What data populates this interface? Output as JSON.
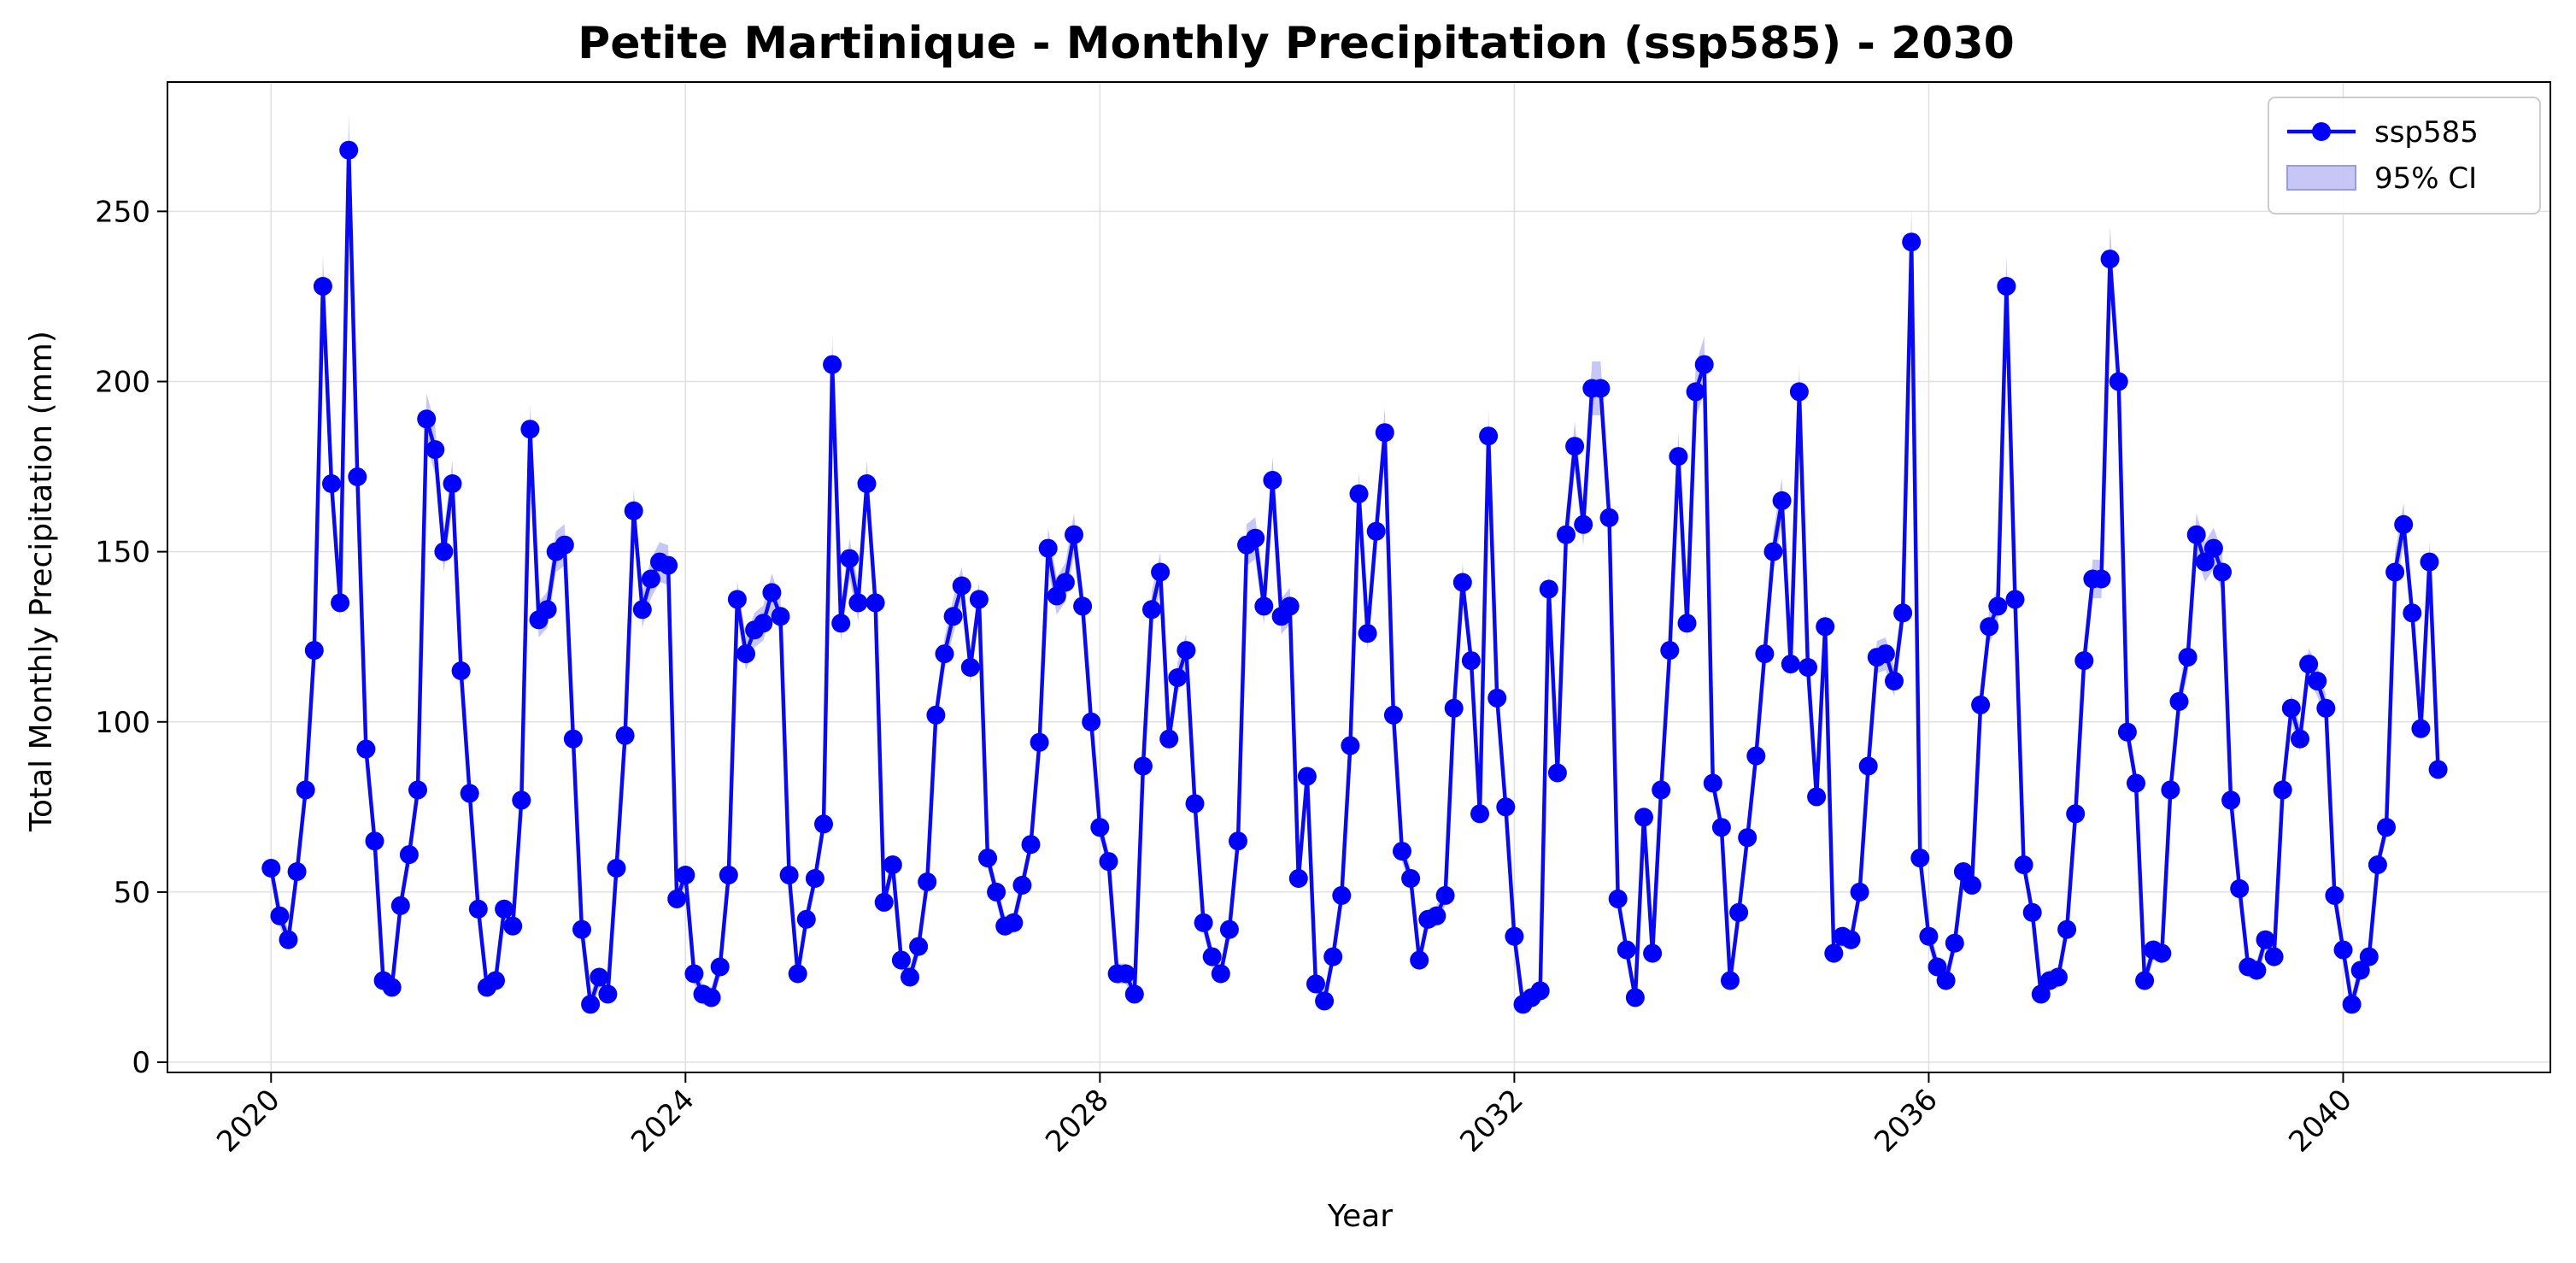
{
  "chart_data": {
    "type": "line",
    "title": "Petite Martinique - Monthly Precipitation (ssp585) - 2030",
    "xlabel": "Year",
    "ylabel": "Total Monthly Precipitation (mm)",
    "x_ticks": [
      2020,
      2024,
      2028,
      2032,
      2036,
      2040
    ],
    "y_ticks": [
      0,
      50,
      100,
      150,
      200,
      250
    ],
    "xlim": [
      2019.0,
      2042.0
    ],
    "ylim": [
      -3,
      288
    ],
    "grid": true,
    "legend_position": "top-right",
    "legend": [
      {
        "label": "ssp585",
        "kind": "line-marker"
      },
      {
        "label": "95% CI",
        "kind": "band"
      }
    ],
    "colors": {
      "line": "#0a0af0",
      "marker": "#0000ff",
      "band": "#9999ee",
      "grid": "#e0e0e0"
    },
    "series": [
      {
        "name": "ssp585",
        "start_year": 2020,
        "step_months": 1,
        "values": [
          57,
          43,
          36,
          56,
          80,
          121,
          228,
          170,
          135,
          268,
          172,
          92,
          65,
          24,
          22,
          46,
          61,
          80,
          189,
          180,
          150,
          170,
          115,
          79,
          45,
          22,
          24,
          45,
          40,
          77,
          186,
          130,
          133,
          150,
          152,
          95,
          39,
          17,
          25,
          20,
          57,
          96,
          162,
          133,
          142,
          147,
          146,
          48,
          55,
          26,
          20,
          19,
          28,
          55,
          136,
          120,
          127,
          129,
          138,
          131,
          55,
          26,
          42,
          54,
          70,
          205,
          129,
          148,
          135,
          170,
          135,
          47,
          58,
          30,
          25,
          34,
          53,
          102,
          120,
          131,
          140,
          116,
          136,
          60,
          50,
          40,
          41,
          52,
          64,
          94,
          151,
          137,
          141,
          155,
          134,
          100,
          69,
          59,
          26,
          26,
          20,
          87,
          133,
          144,
          95,
          113,
          121,
          76,
          41,
          31,
          26,
          39,
          65,
          152,
          154,
          134,
          171,
          131,
          134,
          54,
          84,
          23,
          18,
          31,
          49,
          93,
          167,
          126,
          156,
          185,
          102,
          62,
          54,
          30,
          42,
          43,
          49,
          104,
          141,
          118,
          73,
          184,
          107,
          75,
          37,
          17,
          19,
          21,
          139,
          85,
          155,
          181,
          158,
          198,
          198,
          160,
          48,
          33,
          19,
          72,
          32,
          80,
          121,
          178,
          129,
          197,
          205,
          82,
          69,
          24,
          44,
          66,
          90,
          120,
          150,
          165,
          117,
          197,
          116,
          78,
          128,
          32,
          37,
          36,
          50,
          87,
          119,
          120,
          112,
          132,
          241,
          60,
          37,
          28,
          24,
          35,
          56,
          52,
          105,
          128,
          134,
          228,
          136,
          58,
          44,
          20,
          24,
          25,
          39,
          73,
          118,
          142,
          142,
          236,
          200,
          97,
          82,
          24,
          33,
          32,
          80,
          106,
          119,
          155,
          147,
          151,
          144,
          77,
          51,
          28,
          27,
          36,
          31,
          80,
          104,
          95,
          117,
          112,
          104,
          49,
          33,
          17,
          27,
          31,
          58,
          69,
          144,
          158,
          132,
          98,
          147,
          86
        ]
      }
    ]
  }
}
